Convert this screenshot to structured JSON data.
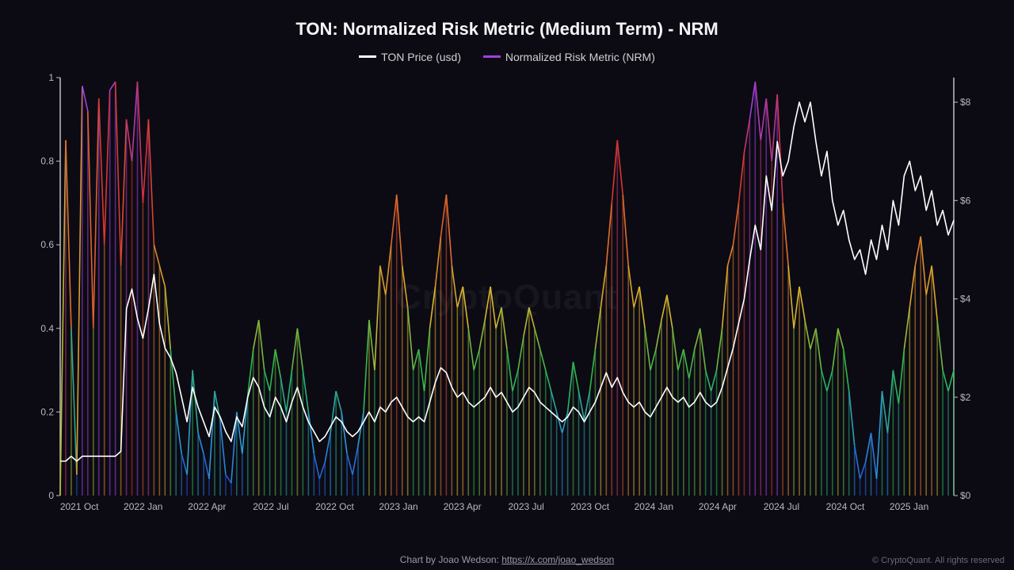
{
  "title": "TON: Normalized Risk Metric (Medium Term) - NRM",
  "legend": {
    "price": {
      "label": "TON Price (usd)",
      "color": "#ffffff"
    },
    "nrm": {
      "label": "Normalized Risk Metric (NRM)",
      "color": "#a040e0"
    }
  },
  "watermark": "CryptoQuant",
  "footer": {
    "prefix": "Chart by Joao Wedson: ",
    "link_text": "https://x.com/joao_wedson"
  },
  "copyright": "© CryptoQuant. All rights reserved",
  "chart": {
    "background_color": "#0c0b14",
    "grid_color": "#1a1a26",
    "x": {
      "start": "2021-08",
      "end": "2025-01",
      "ticks": [
        "2021 Oct",
        "2022 Jan",
        "2022 Apr",
        "2022 Jul",
        "2022 Oct",
        "2023 Jan",
        "2023 Apr",
        "2023 Jul",
        "2023 Oct",
        "2024 Jan",
        "2024 Apr",
        "2024 Jul",
        "2024 Oct",
        "2025 Jan"
      ]
    },
    "y_left": {
      "min": 0,
      "max": 1,
      "ticks": [
        0,
        0.2,
        0.4,
        0.6,
        0.8,
        1
      ],
      "label_fontsize": 12
    },
    "y_right": {
      "min": 0,
      "max": 8.5,
      "ticks": [
        0,
        2,
        4,
        6,
        8
      ],
      "prefix": "$",
      "label_fontsize": 12
    },
    "nrm_color_stops": [
      {
        "v": 0.0,
        "c": "#1f3fd8"
      },
      {
        "v": 0.15,
        "c": "#2a9ad8"
      },
      {
        "v": 0.3,
        "c": "#2eb84a"
      },
      {
        "v": 0.45,
        "c": "#d8b82e"
      },
      {
        "v": 0.6,
        "c": "#e07a2a"
      },
      {
        "v": 0.8,
        "c": "#d83030"
      },
      {
        "v": 0.95,
        "c": "#a040e0"
      }
    ],
    "nrm_line_width": 1.6,
    "price_color": "#ffffff",
    "price_line_width": 1.6,
    "nrm_series": [
      0.0,
      0.85,
      0.4,
      0.05,
      0.98,
      0.92,
      0.4,
      0.95,
      0.6,
      0.97,
      0.99,
      0.55,
      0.9,
      0.8,
      0.99,
      0.7,
      0.9,
      0.6,
      0.55,
      0.5,
      0.35,
      0.2,
      0.1,
      0.05,
      0.3,
      0.15,
      0.1,
      0.04,
      0.25,
      0.18,
      0.05,
      0.03,
      0.2,
      0.1,
      0.24,
      0.35,
      0.42,
      0.3,
      0.25,
      0.35,
      0.28,
      0.2,
      0.3,
      0.4,
      0.3,
      0.2,
      0.1,
      0.04,
      0.08,
      0.15,
      0.25,
      0.2,
      0.1,
      0.05,
      0.12,
      0.2,
      0.42,
      0.3,
      0.55,
      0.48,
      0.6,
      0.72,
      0.55,
      0.45,
      0.3,
      0.35,
      0.25,
      0.4,
      0.5,
      0.62,
      0.72,
      0.55,
      0.45,
      0.5,
      0.4,
      0.3,
      0.35,
      0.42,
      0.5,
      0.4,
      0.45,
      0.35,
      0.25,
      0.3,
      0.38,
      0.45,
      0.4,
      0.35,
      0.3,
      0.25,
      0.2,
      0.15,
      0.2,
      0.32,
      0.25,
      0.18,
      0.25,
      0.35,
      0.45,
      0.55,
      0.7,
      0.85,
      0.72,
      0.55,
      0.45,
      0.5,
      0.4,
      0.3,
      0.35,
      0.42,
      0.48,
      0.4,
      0.3,
      0.35,
      0.28,
      0.35,
      0.4,
      0.3,
      0.25,
      0.3,
      0.4,
      0.55,
      0.6,
      0.7,
      0.82,
      0.9,
      0.99,
      0.85,
      0.95,
      0.8,
      0.96,
      0.7,
      0.55,
      0.4,
      0.5,
      0.42,
      0.35,
      0.4,
      0.3,
      0.25,
      0.3,
      0.4,
      0.35,
      0.25,
      0.12,
      0.04,
      0.08,
      0.15,
      0.04,
      0.25,
      0.15,
      0.3,
      0.22,
      0.35,
      0.45,
      0.55,
      0.62,
      0.48,
      0.55,
      0.42,
      0.3,
      0.25,
      0.3
    ],
    "price_series": [
      0.7,
      0.7,
      0.8,
      0.7,
      0.8,
      0.8,
      0.8,
      0.8,
      0.8,
      0.8,
      0.8,
      0.9,
      3.8,
      4.2,
      3.6,
      3.2,
      3.8,
      4.5,
      3.5,
      3.0,
      2.8,
      2.5,
      2.0,
      1.5,
      2.2,
      1.8,
      1.5,
      1.2,
      1.8,
      1.6,
      1.3,
      1.1,
      1.6,
      1.4,
      2.0,
      2.4,
      2.2,
      1.8,
      1.6,
      2.0,
      1.8,
      1.5,
      1.9,
      2.2,
      1.8,
      1.5,
      1.3,
      1.1,
      1.2,
      1.4,
      1.6,
      1.5,
      1.3,
      1.2,
      1.3,
      1.5,
      1.7,
      1.5,
      1.8,
      1.7,
      1.9,
      2.0,
      1.8,
      1.6,
      1.5,
      1.6,
      1.5,
      1.9,
      2.3,
      2.6,
      2.5,
      2.2,
      2.0,
      2.1,
      1.9,
      1.8,
      1.9,
      2.0,
      2.2,
      2.0,
      2.1,
      1.9,
      1.7,
      1.8,
      2.0,
      2.2,
      2.1,
      1.9,
      1.8,
      1.7,
      1.6,
      1.5,
      1.6,
      1.8,
      1.7,
      1.5,
      1.7,
      1.9,
      2.2,
      2.5,
      2.2,
      2.4,
      2.1,
      1.9,
      1.8,
      1.9,
      1.7,
      1.6,
      1.8,
      2.0,
      2.2,
      2.0,
      1.9,
      2.0,
      1.8,
      1.9,
      2.1,
      1.9,
      1.8,
      1.9,
      2.2,
      2.6,
      3.0,
      3.5,
      4.0,
      4.8,
      5.5,
      5.0,
      6.5,
      5.8,
      7.2,
      6.5,
      6.8,
      7.5,
      8.0,
      7.6,
      8.0,
      7.2,
      6.5,
      7.0,
      6.0,
      5.5,
      5.8,
      5.2,
      4.8,
      5.0,
      4.5,
      5.2,
      4.8,
      5.5,
      5.0,
      6.0,
      5.5,
      6.5,
      6.8,
      6.2,
      6.5,
      5.8,
      6.2,
      5.5,
      5.8,
      5.3,
      5.6
    ]
  }
}
